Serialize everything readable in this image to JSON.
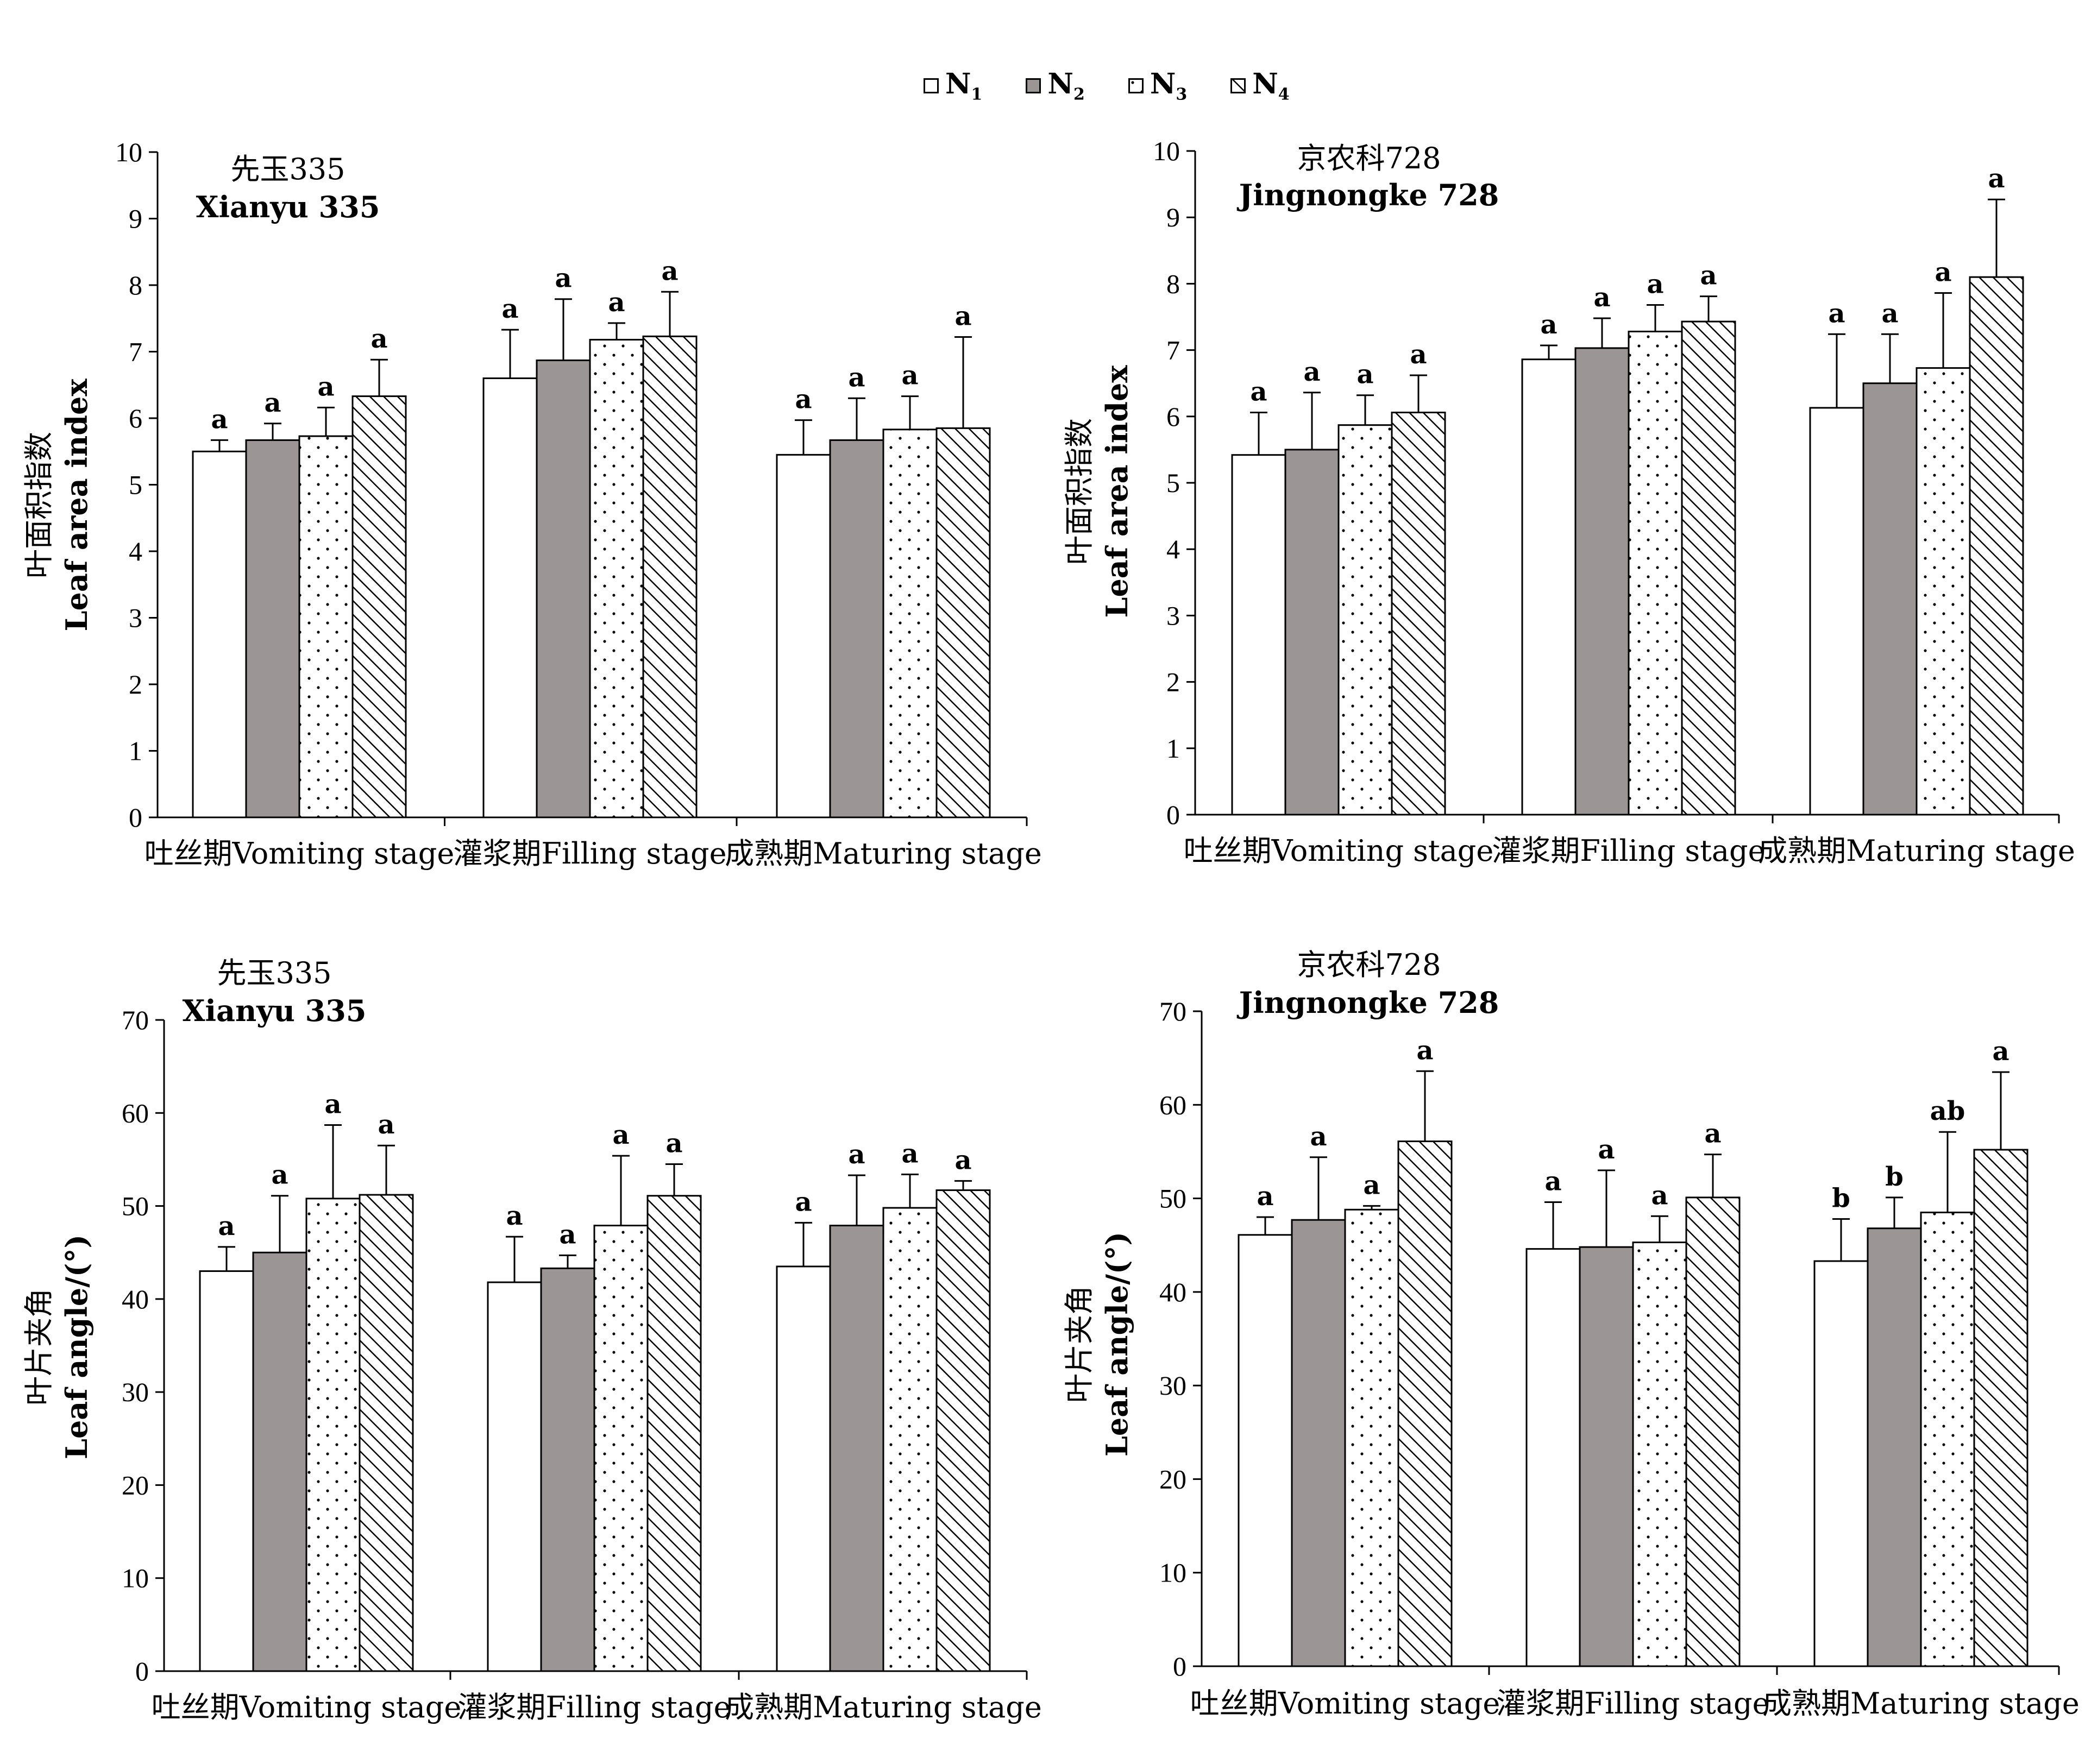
{
  "legend": [
    {
      "key": "N1",
      "base": "N",
      "sub": "1",
      "pattern": "white"
    },
    {
      "key": "N2",
      "base": "N",
      "sub": "2",
      "pattern": "gray"
    },
    {
      "key": "N3",
      "base": "N",
      "sub": "3",
      "pattern": "dots"
    },
    {
      "key": "N4",
      "base": "N",
      "sub": "4",
      "pattern": "hatch"
    }
  ],
  "colors": {
    "gray_fill": "#9c9595",
    "axis": "#000000",
    "background": "#ffffff"
  },
  "chart_data": [
    {
      "id": "lai-xianyu",
      "type": "bar",
      "title_cn": "先玉335",
      "title_en": "Xianyu 335",
      "ylabel_cn": "叶面积指数",
      "ylabel_en": "Leaf area index",
      "ylim": [
        0,
        10
      ],
      "yticks": [
        0,
        1,
        2,
        3,
        4,
        5,
        6,
        7,
        8,
        9,
        10
      ],
      "categories": [
        "吐丝期Vomiting stage",
        "灌浆期Filling stage",
        "成熟期Maturing stage"
      ],
      "series": [
        {
          "name": "N1",
          "values": [
            5.5,
            6.6,
            5.45
          ],
          "errors": [
            0.17,
            0.73,
            0.52
          ],
          "letters": [
            "a",
            "a",
            "a"
          ]
        },
        {
          "name": "N2",
          "values": [
            5.67,
            6.87,
            5.67
          ],
          "errors": [
            0.25,
            0.92,
            0.63
          ],
          "letters": [
            "a",
            "a",
            "a"
          ]
        },
        {
          "name": "N3",
          "values": [
            5.73,
            7.18,
            5.83
          ],
          "errors": [
            0.43,
            0.25,
            0.5
          ],
          "letters": [
            "a",
            "a",
            "a"
          ]
        },
        {
          "name": "N4",
          "values": [
            6.33,
            7.23,
            5.85
          ],
          "errors": [
            0.55,
            0.67,
            1.37
          ],
          "letters": [
            "a",
            "a",
            "a"
          ]
        }
      ]
    },
    {
      "id": "lai-jingnongke",
      "type": "bar",
      "title_cn": "京农科728",
      "title_en": "Jingnongke 728",
      "ylabel_cn": "叶面积指数",
      "ylabel_en": "Leaf area index",
      "ylim": [
        0,
        10
      ],
      "yticks": [
        0,
        1,
        2,
        3,
        4,
        5,
        6,
        7,
        8,
        9,
        10
      ],
      "categories": [
        "吐丝期Vomiting stage",
        "灌浆期Filling stage",
        "成熟期Maturing stage"
      ],
      "series": [
        {
          "name": "N1",
          "values": [
            5.42,
            6.86,
            6.13
          ],
          "errors": [
            0.64,
            0.21,
            1.11
          ],
          "letters": [
            "a",
            "a",
            "a"
          ]
        },
        {
          "name": "N2",
          "values": [
            5.5,
            7.03,
            6.5
          ],
          "errors": [
            0.86,
            0.45,
            0.74
          ],
          "letters": [
            "a",
            "a",
            "a"
          ]
        },
        {
          "name": "N3",
          "values": [
            5.87,
            7.28,
            6.73
          ],
          "errors": [
            0.45,
            0.4,
            1.13
          ],
          "letters": [
            "a",
            "a",
            "a"
          ]
        },
        {
          "name": "N4",
          "values": [
            6.06,
            7.43,
            8.1
          ],
          "errors": [
            0.56,
            0.38,
            1.17
          ],
          "letters": [
            "a",
            "a",
            "a"
          ]
        }
      ]
    },
    {
      "id": "angle-xianyu",
      "type": "bar",
      "title_cn": "先玉335",
      "title_en": "Xianyu 335",
      "ylabel_cn": "叶片夹角",
      "ylabel_en": "Leaf angle/(°)",
      "ylim": [
        0,
        70
      ],
      "yticks": [
        0,
        10,
        20,
        30,
        40,
        50,
        60,
        70
      ],
      "categories": [
        "吐丝期Vomiting stage",
        "灌浆期Filling stage",
        "成熟期Maturing stage"
      ],
      "series": [
        {
          "name": "N1",
          "values": [
            43.0,
            41.8,
            43.5
          ],
          "errors": [
            2.6,
            4.9,
            4.7
          ],
          "letters": [
            "a",
            "a",
            "a"
          ]
        },
        {
          "name": "N2",
          "values": [
            45.0,
            43.3,
            47.9
          ],
          "errors": [
            6.1,
            1.4,
            5.4
          ],
          "letters": [
            "a",
            "a",
            "a"
          ]
        },
        {
          "name": "N3",
          "values": [
            50.8,
            47.9,
            49.8
          ],
          "errors": [
            7.9,
            7.5,
            3.6
          ],
          "letters": [
            "a",
            "a",
            "a"
          ]
        },
        {
          "name": "N4",
          "values": [
            51.2,
            51.1,
            51.7
          ],
          "errors": [
            5.3,
            3.4,
            1.0
          ],
          "letters": [
            "a",
            "a",
            "a"
          ]
        }
      ]
    },
    {
      "id": "angle-jingnongke",
      "type": "bar",
      "title_cn": "京农科728",
      "title_en": "Jingnongke 728",
      "ylabel_cn": "叶片夹角",
      "ylabel_en": "Leaf angle/(°)",
      "ylim": [
        0,
        70
      ],
      "yticks": [
        0,
        10,
        20,
        30,
        40,
        50,
        60,
        70
      ],
      "categories": [
        "吐丝期Vomiting stage",
        "灌浆期Filling stage",
        "成熟期Maturing stage"
      ],
      "series": [
        {
          "name": "N1",
          "values": [
            46.1,
            44.6,
            43.3
          ],
          "errors": [
            1.9,
            5.0,
            4.5
          ],
          "letters": [
            "a",
            "a",
            "b"
          ]
        },
        {
          "name": "N2",
          "values": [
            47.7,
            44.8,
            46.8
          ],
          "errors": [
            6.7,
            8.2,
            3.3
          ],
          "letters": [
            "a",
            "a",
            "b"
          ]
        },
        {
          "name": "N3",
          "values": [
            48.8,
            45.3,
            48.5
          ],
          "errors": [
            0.4,
            2.8,
            8.6
          ],
          "letters": [
            "a",
            "a",
            "ab"
          ]
        },
        {
          "name": "N4",
          "values": [
            56.1,
            50.1,
            55.2
          ],
          "errors": [
            7.5,
            4.6,
            8.3
          ],
          "letters": [
            "a",
            "a",
            "a"
          ]
        }
      ]
    }
  ]
}
